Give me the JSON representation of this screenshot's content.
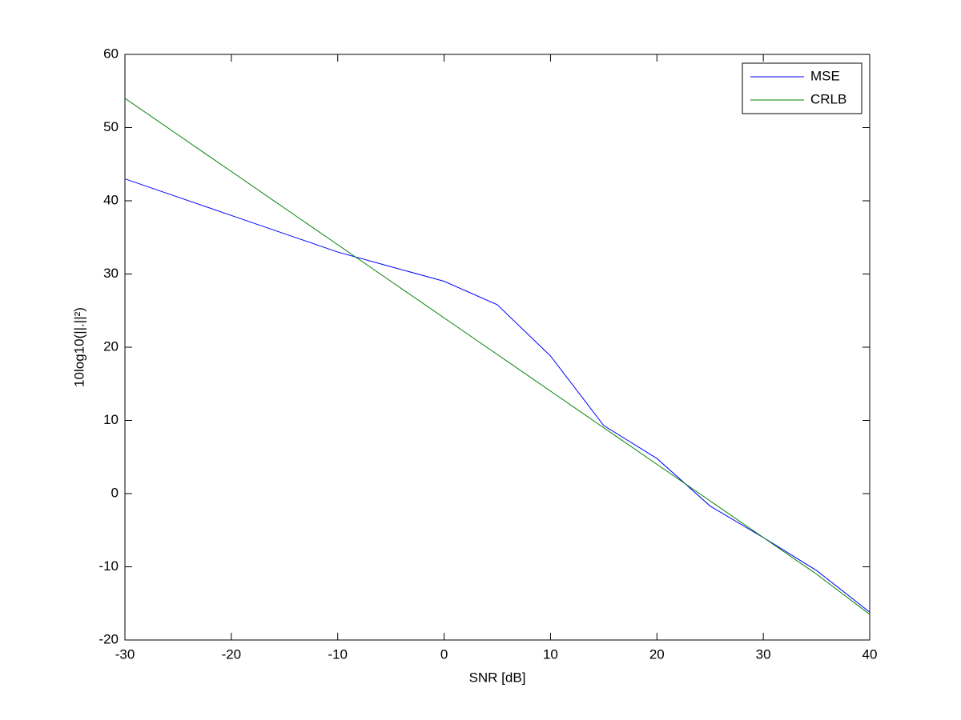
{
  "chart_data": {
    "type": "line",
    "xlabel": "SNR [dB]",
    "ylabel": "10log10(||.||²)",
    "x": [
      -30,
      -25,
      -20,
      -15,
      -10,
      -5,
      0,
      5,
      10,
      15,
      20,
      25,
      30,
      35,
      40
    ],
    "series": [
      {
        "name": "MSE",
        "color": "#0000ff",
        "values": [
          43,
          40.5,
          38,
          35.5,
          33,
          31,
          29,
          25.8,
          18.8,
          9.3,
          4.8,
          -1.7,
          -6,
          -10.5,
          -16.2
        ]
      },
      {
        "name": "CRLB",
        "color": "#008000",
        "values": [
          54,
          49,
          44,
          39,
          34,
          29,
          24,
          19,
          14,
          9,
          4,
          -1,
          -6,
          -11,
          -16.5
        ]
      }
    ],
    "xlim": [
      -30,
      40
    ],
    "xticks": [
      -30,
      -20,
      -10,
      0,
      10,
      20,
      30,
      40
    ],
    "ylim": [
      -20,
      60
    ],
    "yticks": [
      -20,
      -10,
      0,
      10,
      20,
      30,
      40,
      50,
      60
    ],
    "grid": false,
    "legend": "top-right"
  }
}
